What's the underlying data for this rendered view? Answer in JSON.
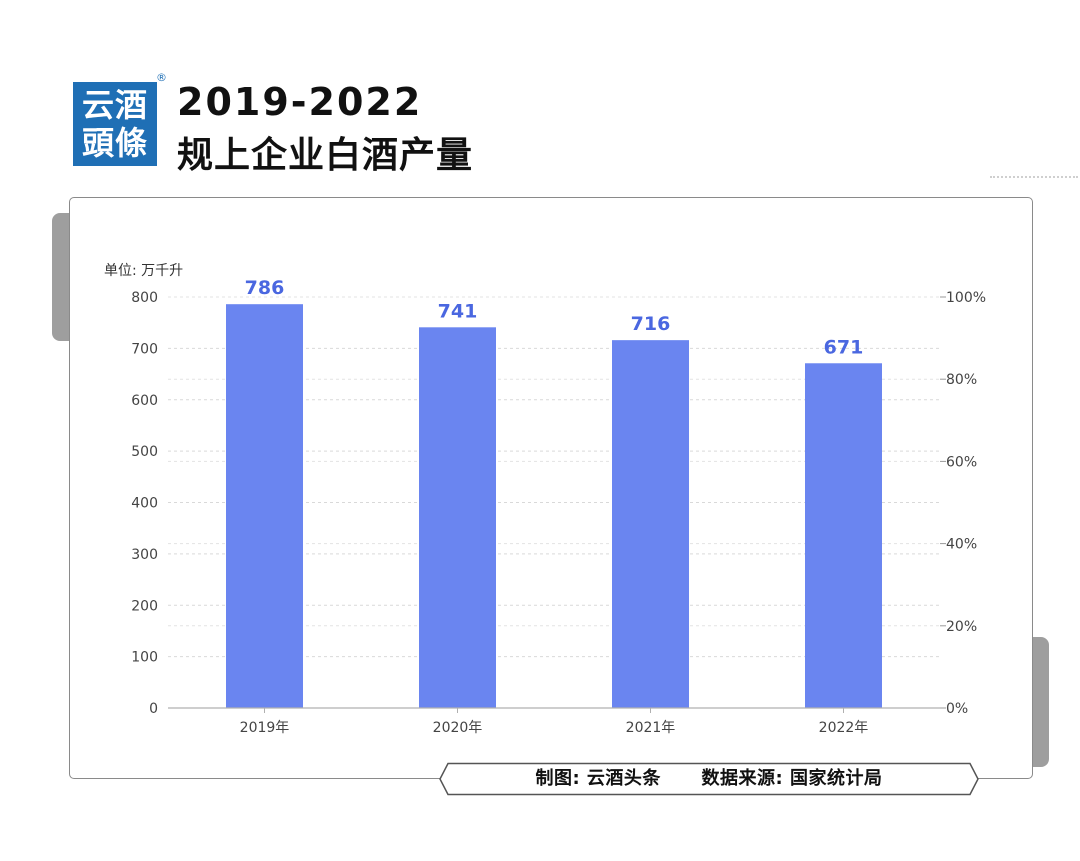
{
  "header": {
    "logo_line1": "云酒",
    "logo_line2": "頭條",
    "registered_mark": "®",
    "title_line1": "2019-2022",
    "title_line2": "规上企业白酒产量"
  },
  "chart_data": {
    "type": "bar",
    "unit_label": "单位: 万千升",
    "categories": [
      "2019年",
      "2020年",
      "2021年",
      "2022年"
    ],
    "values": [
      786,
      741,
      716,
      671
    ],
    "data_labels": [
      "786",
      "741",
      "716",
      "671"
    ],
    "ylim": [
      0,
      800
    ],
    "y_ticks": [
      "0",
      "100",
      "200",
      "300",
      "400",
      "500",
      "600",
      "700",
      "800"
    ],
    "y2_ticks": [
      "0%",
      "20%",
      "40%",
      "60%",
      "80%",
      "100%"
    ],
    "y2lim": [
      0,
      100
    ],
    "grid": true,
    "colors": {
      "bar": "#6a85f0",
      "label": "#4a67e0"
    }
  },
  "footer": {
    "credit": "制图: 云酒头条",
    "source": "数据来源: 国家统计局"
  }
}
